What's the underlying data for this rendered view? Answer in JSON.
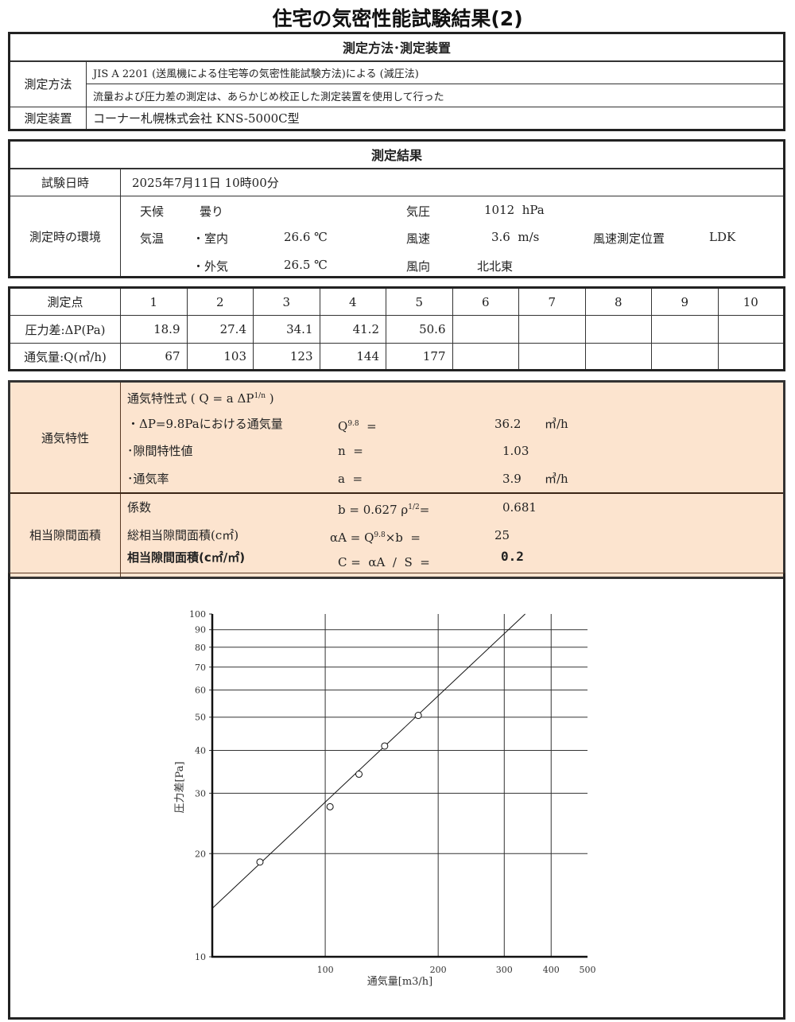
{
  "title": "住宅の気密性能試験結果(2)",
  "method": {
    "header": "測定方法･測定装置",
    "method_label": "測定方法",
    "method_line1": "JIS A 2201 (送風機による住宅等の気密性能試験方法)による (減圧法)",
    "method_line2": "流量および圧力差の測定は、あらかじめ校正した測定装置を使用して行った",
    "device_label": "測定装置",
    "device_value": "コーナー札幌株式会社  KNS-5000C型"
  },
  "results": {
    "header": "測定結果",
    "date_label": "試験日時",
    "date_value": "2025年7月11日 10時00分",
    "env_label": "測定時の環境",
    "weather_label": "天候",
    "weather_value": "曇り",
    "pressure_label": "気圧",
    "pressure_value": "1012  hPa",
    "temp_label": "気温",
    "indoor_label": "・室内",
    "indoor_value": "26.6 ℃",
    "outdoor_label": "・外気",
    "outdoor_value": "26.5 ℃",
    "wind_speed_label": "風速",
    "wind_speed_value": "3.6  m/s",
    "wind_pos_label": "風速測定位置",
    "wind_pos_value": "LDK",
    "wind_dir_label": "風向",
    "wind_dir_value": "北北東"
  },
  "points": {
    "point_label": "測定点",
    "numbers": [
      "1",
      "2",
      "3",
      "4",
      "5",
      "6",
      "7",
      "8",
      "9",
      "10"
    ],
    "dp_label": "圧力差:ΔP(Pa)",
    "dp": [
      "18.9",
      "27.4",
      "34.1",
      "41.2",
      "50.6",
      "",
      "",
      "",
      "",
      ""
    ],
    "q_label": "通気量:Q(㎥/h)",
    "q": [
      "67",
      "103",
      "123",
      "144",
      "177",
      "",
      "",
      "",
      "",
      ""
    ]
  },
  "characteristics": {
    "label": "通気特性",
    "formula_title": "通気特性式 ( Q = a  ΔP",
    "formula_exp": "1/n",
    "formula_close": " )",
    "q98_label": "・ΔP=9.8Paにおける通気量",
    "q98_sym": "Q",
    "q98_sup": "9.8",
    "q98_eq": "  =",
    "q98_value": "36.2",
    "q98_unit": "㎥/h",
    "n_label": "･隙間特性値",
    "n_sym": "n  =",
    "n_value": "1.03",
    "a_label": "･通気率",
    "a_sym": "a  =",
    "a_value": "3.9",
    "a_unit": "㎥/h"
  },
  "area": {
    "label": "相当隙間面積",
    "b_label": "係数",
    "b_sym": "b = 0.627 ρ",
    "b_sup": "1/2",
    "b_eq": "=",
    "b_value": "0.681",
    "aa_label": "総相当隙間面積(c㎡)",
    "aa_sym": "αA = Q",
    "aa_sup": "9.8",
    "aa_eq": "×b  =",
    "aa_value": "25",
    "c_label": "相当隙間面積(c㎡/㎡)",
    "c_sym": "C =  αA  /  S  =",
    "c_value": "0.2"
  },
  "chart_data": {
    "type": "scatter",
    "xlabel": "通気量[m3/h]",
    "ylabel": "圧力差[Pa]",
    "x_scale": "log",
    "y_scale": "log",
    "xlim": [
      50,
      500
    ],
    "ylim": [
      10,
      100
    ],
    "x_ticks": [
      "100",
      "200",
      "300",
      "400",
      "500"
    ],
    "y_ticks": [
      "10",
      "20",
      "30",
      "40",
      "50",
      "60",
      "70",
      "80",
      "90",
      "100"
    ],
    "grid": true,
    "points": [
      {
        "q": 67,
        "dp": 18.9
      },
      {
        "q": 103,
        "dp": 27.4
      },
      {
        "q": 123,
        "dp": 34.1
      },
      {
        "q": 144,
        "dp": 41.2
      },
      {
        "q": 177,
        "dp": 50.6
      }
    ],
    "fit": {
      "a": 3.9,
      "n": 1.03
    }
  },
  "colors": {
    "highlight_bg": "#fce4cf"
  }
}
